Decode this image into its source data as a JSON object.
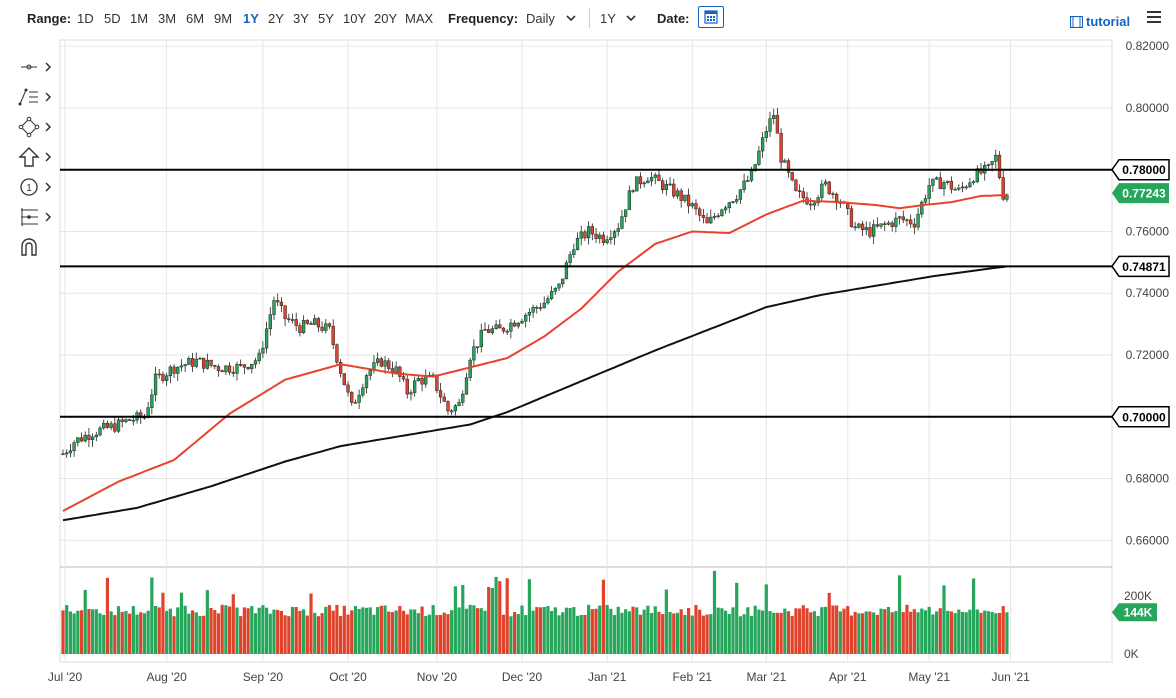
{
  "toolbar": {
    "range_label": "Range:",
    "ranges": [
      "1D",
      "5D",
      "1M",
      "3M",
      "6M",
      "9M",
      "1Y",
      "2Y",
      "3Y",
      "5Y",
      "10Y",
      "20Y",
      "MAX"
    ],
    "active_range": "1Y",
    "frequency_label": "Frequency:",
    "frequency_value": "Daily",
    "period_value": "1Y",
    "date_label": "Date:",
    "tutorial_label": "tutorial"
  },
  "side_tools": [
    "crosshair-tool",
    "trend-lines-tool",
    "shapes-tool",
    "arrow-tool",
    "annotation-tool",
    "fibonacci-tool",
    "magnet-tool"
  ],
  "colors": {
    "up_candle": "#26a65b",
    "down_candle": "#e0432b",
    "ma50": "#e8432b",
    "ma200": "#111111",
    "price_tag": "#26a65b",
    "volume_up": "#26a65b",
    "volume_down": "#e0432b"
  },
  "chart_data": {
    "type": "candlestick",
    "instrument_last": "0.77243",
    "y_ticks": [
      "0.82000",
      "0.80000",
      "0.78000",
      "0.76000",
      "0.74000",
      "0.72000",
      "0.70000",
      "0.68000",
      "0.66000"
    ],
    "ylim": [
      0.652,
      0.822
    ],
    "x_ticks": [
      "Jul '20",
      "Aug '20",
      "Sep '20",
      "Oct '20",
      "Nov '20",
      "Dec '20",
      "Jan '21",
      "Feb '21",
      "Mar '21",
      "Apr '21",
      "May '21",
      "Jun '21"
    ],
    "horizontal_levels": [
      {
        "value": 0.78,
        "label": "0.78000"
      },
      {
        "value": 0.74871,
        "label": "0.74871"
      },
      {
        "value": 0.7,
        "label": "0.70000"
      }
    ],
    "last_price": {
      "value": 0.77243,
      "label": "0.77243"
    },
    "price_path": [
      [
        0,
        0.688
      ],
      [
        3,
        0.692
      ],
      [
        8,
        0.695
      ],
      [
        14,
        0.697
      ],
      [
        18,
        0.699
      ],
      [
        22,
        0.7
      ],
      [
        25,
        0.712
      ],
      [
        30,
        0.716
      ],
      [
        36,
        0.718
      ],
      [
        42,
        0.716
      ],
      [
        48,
        0.716
      ],
      [
        53,
        0.719
      ],
      [
        57,
        0.738
      ],
      [
        60,
        0.732
      ],
      [
        64,
        0.729
      ],
      [
        68,
        0.73
      ],
      [
        72,
        0.728
      ],
      [
        75,
        0.715
      ],
      [
        78,
        0.703
      ],
      [
        82,
        0.714
      ],
      [
        86,
        0.718
      ],
      [
        90,
        0.715
      ],
      [
        93,
        0.708
      ],
      [
        96,
        0.712
      ],
      [
        100,
        0.712
      ],
      [
        104,
        0.702
      ],
      [
        107,
        0.704
      ],
      [
        110,
        0.72
      ],
      [
        114,
        0.728
      ],
      [
        118,
        0.728
      ],
      [
        122,
        0.731
      ],
      [
        126,
        0.734
      ],
      [
        130,
        0.737
      ],
      [
        134,
        0.742
      ],
      [
        138,
        0.756
      ],
      [
        142,
        0.76
      ],
      [
        146,
        0.758
      ],
      [
        150,
        0.762
      ],
      [
        154,
        0.775
      ],
      [
        158,
        0.778
      ],
      [
        162,
        0.775
      ],
      [
        166,
        0.772
      ],
      [
        170,
        0.768
      ],
      [
        174,
        0.762
      ],
      [
        178,
        0.768
      ],
      [
        182,
        0.772
      ],
      [
        186,
        0.778
      ],
      [
        190,
        0.793
      ],
      [
        192,
        0.798
      ],
      [
        194,
        0.784
      ],
      [
        198,
        0.772
      ],
      [
        202,
        0.77
      ],
      [
        206,
        0.775
      ],
      [
        210,
        0.77
      ],
      [
        214,
        0.761
      ],
      [
        218,
        0.76
      ],
      [
        222,
        0.762
      ],
      [
        226,
        0.764
      ],
      [
        230,
        0.763
      ],
      [
        234,
        0.775
      ],
      [
        238,
        0.776
      ],
      [
        242,
        0.773
      ],
      [
        246,
        0.778
      ],
      [
        250,
        0.78
      ],
      [
        252,
        0.784
      ],
      [
        254,
        0.772
      ],
      [
        255,
        0.7724
      ]
    ],
    "ma50_path": [
      [
        0,
        0.6695
      ],
      [
        15,
        0.679
      ],
      [
        30,
        0.686
      ],
      [
        45,
        0.701
      ],
      [
        60,
        0.712
      ],
      [
        75,
        0.717
      ],
      [
        90,
        0.714
      ],
      [
        100,
        0.713
      ],
      [
        110,
        0.716
      ],
      [
        120,
        0.719
      ],
      [
        130,
        0.726
      ],
      [
        140,
        0.735
      ],
      [
        150,
        0.747
      ],
      [
        160,
        0.756
      ],
      [
        170,
        0.76
      ],
      [
        180,
        0.7595
      ],
      [
        190,
        0.7655
      ],
      [
        200,
        0.77
      ],
      [
        210,
        0.7695
      ],
      [
        220,
        0.7685
      ],
      [
        226,
        0.7675
      ],
      [
        232,
        0.7685
      ],
      [
        240,
        0.7695
      ],
      [
        248,
        0.7715
      ],
      [
        255,
        0.7718
      ]
    ],
    "ma200_path": [
      [
        0,
        0.6665
      ],
      [
        20,
        0.6705
      ],
      [
        40,
        0.6775
      ],
      [
        60,
        0.6855
      ],
      [
        75,
        0.6905
      ],
      [
        90,
        0.6935
      ],
      [
        100,
        0.6955
      ],
      [
        110,
        0.6975
      ],
      [
        120,
        0.7015
      ],
      [
        140,
        0.7115
      ],
      [
        160,
        0.7215
      ],
      [
        175,
        0.7285
      ],
      [
        190,
        0.7355
      ],
      [
        205,
        0.7395
      ],
      [
        220,
        0.7425
      ],
      [
        235,
        0.7455
      ],
      [
        255,
        0.7487
      ]
    ],
    "volume_panel": {
      "y_ticks": [
        "200K",
        "0K"
      ],
      "ylim": [
        0,
        300000
      ],
      "last_label": "144K",
      "last_value": 144000
    }
  }
}
